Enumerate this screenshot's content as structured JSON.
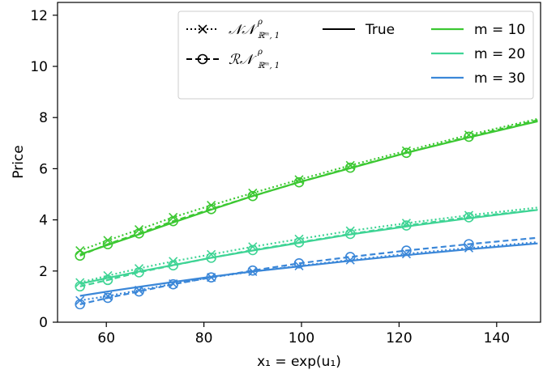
{
  "chart_data": {
    "type": "line",
    "xlabel": "x₁ = exp(u₁)",
    "ylabel": "Price",
    "xlim": [
      50,
      149
    ],
    "ylim": [
      0,
      12.5
    ],
    "xticks": [
      60,
      80,
      100,
      120,
      140
    ],
    "yticks": [
      0,
      2,
      4,
      6,
      8,
      10,
      12
    ],
    "legend_position": "top-right",
    "x": [
      54.6,
      60.3,
      66.7,
      73.7,
      81.5,
      90.0,
      99.5,
      110.0,
      121.5,
      134.3,
      148.4
    ],
    "legend": {
      "nn_label": "𝒩𝒩",
      "nn_sup": "ρ",
      "nn_sub": "ℝᵐ, 1",
      "rn_label": "ℛ𝒩",
      "rn_sup": "ρ",
      "rn_sub": "ℝᵐ, 1",
      "true_label": "True",
      "m10_label": "m = 10",
      "m20_label": "m = 20",
      "m30_label": "m = 30"
    },
    "series": [
      {
        "name": "m = 10",
        "color": "#3cc832",
        "method": "True",
        "values": [
          2.65,
          3.02,
          3.43,
          3.9,
          4.4,
          4.93,
          5.47,
          6.02,
          6.62,
          7.22,
          7.85
        ]
      },
      {
        "name": "m = 10",
        "color": "#3cc832",
        "method": "NN",
        "values": [
          2.8,
          3.2,
          3.62,
          4.1,
          4.57,
          5.05,
          5.57,
          6.13,
          6.7,
          7.32,
          7.95
        ]
      },
      {
        "name": "m = 10",
        "color": "#3cc832",
        "method": "RN",
        "values": [
          2.6,
          3.05,
          3.47,
          3.95,
          4.42,
          4.93,
          5.47,
          6.04,
          6.62,
          7.25,
          7.9
        ]
      },
      {
        "name": "m = 20",
        "color": "#3fd495",
        "method": "True",
        "values": [
          1.5,
          1.73,
          1.98,
          2.23,
          2.52,
          2.8,
          3.1,
          3.43,
          3.74,
          4.06,
          4.39
        ]
      },
      {
        "name": "m = 20",
        "color": "#3fd495",
        "method": "NN",
        "values": [
          1.55,
          1.82,
          2.1,
          2.38,
          2.65,
          2.95,
          3.25,
          3.57,
          3.87,
          4.18,
          4.48
        ]
      },
      {
        "name": "m = 20",
        "color": "#3fd495",
        "method": "RN",
        "values": [
          1.4,
          1.65,
          1.95,
          2.22,
          2.52,
          2.82,
          3.12,
          3.45,
          3.78,
          4.1,
          4.4
        ]
      },
      {
        "name": "m = 30",
        "color": "#3b87d8",
        "method": "True",
        "values": [
          1.03,
          1.2,
          1.38,
          1.57,
          1.78,
          1.98,
          2.18,
          2.4,
          2.62,
          2.85,
          3.08
        ]
      },
      {
        "name": "m = 30",
        "color": "#3b87d8",
        "method": "NN",
        "values": [
          0.85,
          1.02,
          1.25,
          1.5,
          1.75,
          1.98,
          2.2,
          2.43,
          2.67,
          2.9,
          3.13
        ]
      },
      {
        "name": "m = 30",
        "color": "#3b87d8",
        "method": "RN",
        "values": [
          0.7,
          0.95,
          1.2,
          1.48,
          1.75,
          2.02,
          2.3,
          2.55,
          2.8,
          3.05,
          3.3
        ]
      }
    ]
  }
}
